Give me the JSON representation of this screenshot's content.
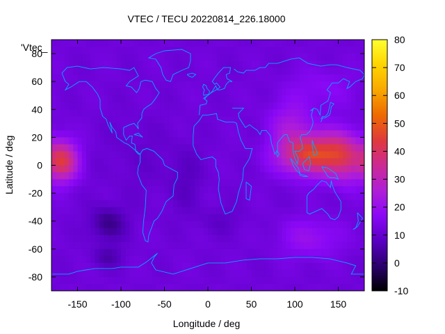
{
  "chart_data": {
    "type": "heatmap",
    "title": "VTEC / TECU 20220814_226.18000",
    "xlabel": "Longitude / deg",
    "ylabel": "Latitude / deg",
    "legend_key": "'Vtec_",
    "xlim": [
      -180,
      180
    ],
    "ylim": [
      -90,
      90
    ],
    "x_ticks": [
      -150,
      -100,
      -50,
      0,
      50,
      100,
      150
    ],
    "y_ticks": [
      -80,
      -60,
      -40,
      -20,
      0,
      20,
      40,
      60,
      80
    ],
    "colorbar": {
      "min": -10,
      "max": 80,
      "ticks": [
        -10,
        0,
        10,
        20,
        30,
        40,
        50,
        60,
        70,
        80
      ]
    },
    "colormap": [
      "#000000",
      "#2b006e",
      "#5a00c4",
      "#8a08f6",
      "#b01fd6",
      "#cc2a93",
      "#e03a3c",
      "#ee6a00",
      "#f8a800",
      "#ffd400",
      "#ffff30"
    ],
    "background_level": 12,
    "features": [
      {
        "name": "Asia-Pacific maximum",
        "lon": 112,
        "lat": 8,
        "peak": 48
      },
      {
        "name": "Central Pacific maximum",
        "lon": -160,
        "lat": 2,
        "peak": 42
      },
      {
        "name": "Eastern Pacific minimum",
        "lon": -115,
        "lat": -42,
        "peak": 1
      }
    ],
    "coastline_color": "#00aaff"
  }
}
